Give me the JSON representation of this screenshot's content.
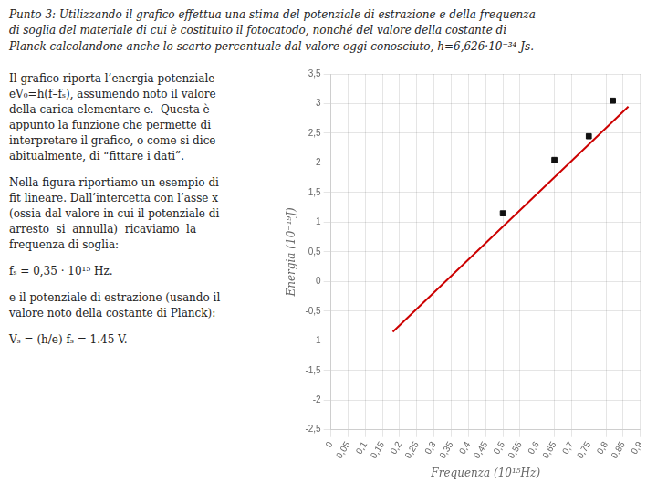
{
  "chart_data": {
    "type": "scatter",
    "title": [
      "Punto 3: Utilizzando il grafico effettua una stima del potenziale di estrazione e della frequenza",
      "di soglia del materiale di cui è costituito il fotocatodo, nonché del valore della costante di",
      "Planck calcolandone anche lo scarto percentuale dal valore oggi conosciuto, h=6,626·10⁻³⁴ Js."
    ],
    "annotations": [
      "Il grafico riporta l’energia potenziale\neV₀=h(f–fₛ), assumendo noto il valore\ndella carica elementare e.  Questa è\nappunto la funzione che permette di\ninterpretare il grafico, o come si dice\nabitualmente, di “fittare i dati”.",
      "Nella figura riportiamo un esempio di\nfit lineare. Dall’intercetta con l’asse x\n(ossia dal valore in cui il potenziale di\narresto  si  annulla)  ricaviamo  la\nfrequenza di soglia:",
      "fₛ = 0,35 · 10¹⁵ Hz.",
      "e il potenziale di estrazione (usando il\nvalore noto della costante di Planck):",
      "Vₛ = (h/e) fₛ = 1.45 V."
    ],
    "xlabel": "Frequenza (10¹⁵Hz)",
    "ylabel": "Energia (10⁻¹⁹J)",
    "xlim": [
      0,
      0.9
    ],
    "ylim": [
      -2.5,
      3.5
    ],
    "xticks": [
      0,
      {
        "value": 0.05,
        "label": "0,05"
      },
      {
        "value": 0.1,
        "label": "0,1"
      },
      {
        "value": 0.15,
        "label": "0,15"
      },
      {
        "value": 0.2,
        "label": "0,2"
      },
      {
        "value": 0.25,
        "label": "0,25"
      },
      {
        "value": 0.3,
        "label": "0,3"
      },
      {
        "value": 0.35,
        "label": "0,35"
      },
      {
        "value": 0.4,
        "label": "0,4"
      },
      {
        "value": 0.45,
        "label": "0,45"
      },
      {
        "value": 0.5,
        "label": "0,5"
      },
      {
        "value": 0.55,
        "label": "0,55"
      },
      {
        "value": 0.6,
        "label": "0,6"
      },
      {
        "value": 0.65,
        "label": "0,65"
      },
      {
        "value": 0.7,
        "label": "0,7"
      },
      {
        "value": 0.75,
        "label": "0,75"
      },
      {
        "value": 0.8,
        "label": "0,8"
      },
      {
        "value": 0.85,
        "label": "0,85"
      },
      {
        "value": 0.9,
        "label": "0,9"
      }
    ],
    "yticks": [
      {
        "value": -2.5,
        "label": "-2,5"
      },
      -2,
      {
        "value": -1.5,
        "label": "-1,5"
      },
      -1,
      {
        "value": -0.5,
        "label": "-0,5"
      },
      0,
      {
        "value": 0.5,
        "label": "0,5"
      },
      1,
      {
        "value": 1.5,
        "label": "1,5"
      },
      2,
      {
        "value": 2.5,
        "label": "2,5"
      },
      3,
      {
        "value": 3.5,
        "label": "3,5"
      }
    ],
    "grid": true,
    "series": [
      {
        "type": "line",
        "color": "#cc0000",
        "line_style": "solid",
        "x": [
          0.18,
          0.865
        ],
        "values": [
          -0.85,
          2.95
        ]
      },
      {
        "type": "scatter",
        "color": "#111111",
        "marker": "square",
        "x": [
          0.5,
          0.65,
          0.75,
          0.82
        ],
        "values": [
          1.15,
          2.05,
          2.45,
          3.05
        ]
      }
    ]
  }
}
